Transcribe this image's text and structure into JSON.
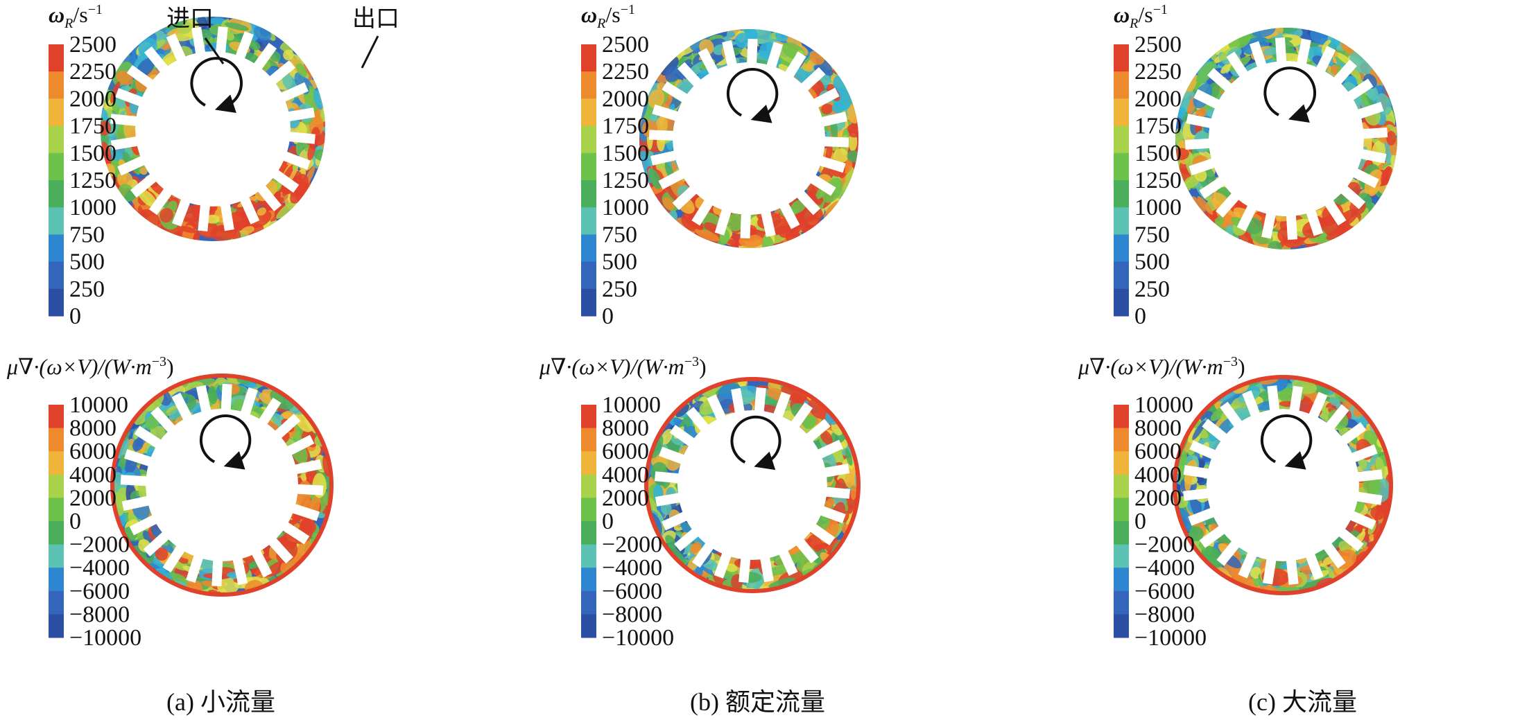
{
  "colors": {
    "scale": [
      "#2b4fa3",
      "#3366bb",
      "#2e86d0",
      "#33b3d8",
      "#5cc2b3",
      "#4aae5a",
      "#6cc24a",
      "#a8d24a",
      "#e3e04a",
      "#f0b43a",
      "#ee8a2e",
      "#e0412a"
    ],
    "background": "#ffffff",
    "arrow": "#111111"
  },
  "panels": [
    {
      "caption": "(a) 小流量"
    },
    {
      "caption": "(b) 额定流量"
    },
    {
      "caption": "(c) 大流量"
    }
  ],
  "annotations": {
    "inlet": "进口",
    "outlet": "出口"
  },
  "top_legend": {
    "title_symbol": "ω",
    "title_sub": "R",
    "title_unit": "/s",
    "title_sup": "−1",
    "ticks": [
      "2500",
      "2250",
      "2000",
      "1750",
      "1500",
      "1250",
      "1000",
      "750",
      "500",
      "250",
      "0"
    ]
  },
  "bottom_legend": {
    "title": "μ∇·(ω×V)/(W·m",
    "title_sup": "−3",
    "title_end": ")",
    "ticks": [
      "10000",
      "8000",
      "6000",
      "4000",
      "2000",
      "0",
      "−2000",
      "−4000",
      "−6000",
      "−8000",
      "−10000"
    ]
  }
}
